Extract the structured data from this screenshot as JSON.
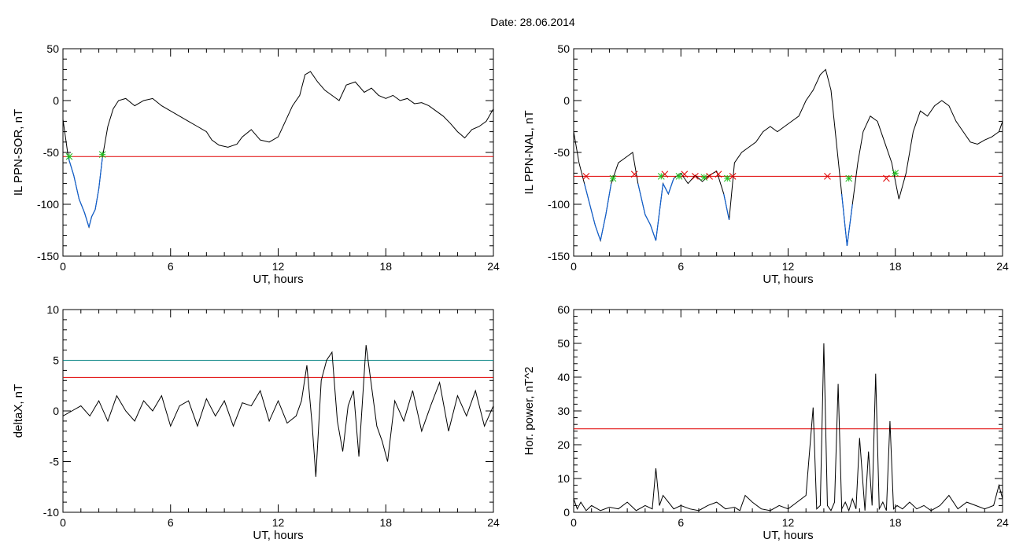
{
  "header": {
    "date_label": "Date:  28.06.2014"
  },
  "colors": {
    "data": "#000000",
    "threshold": "#e00000",
    "highlight": "#1060d0",
    "threshold2": "#008080",
    "marker_cross": "#e00000",
    "marker_star": "#20c020"
  },
  "chart_data": [
    {
      "type": "line",
      "xlabel": "UT, hours",
      "ylabel": "IL PPN-SOR, nT",
      "xlim": [
        0,
        24
      ],
      "ylim": [
        -150,
        50
      ],
      "xticks": [
        0,
        6,
        12,
        18,
        24
      ],
      "yticks": [
        -150,
        -100,
        -50,
        0,
        50
      ],
      "threshold": -54,
      "series": [
        {
          "x": [
            0,
            0.3,
            0.6,
            0.9,
            1.2,
            1.45,
            1.6,
            1.8,
            2.0,
            2.2,
            2.5,
            2.8,
            3.1,
            3.5,
            4.0,
            4.5,
            5.0,
            5.5,
            6.0,
            6.5,
            7.0,
            7.5,
            8.0,
            8.3,
            8.7,
            9.2,
            9.7,
            10.0,
            10.5,
            11.0,
            11.5,
            12.0,
            12.4,
            12.8,
            13.2,
            13.5,
            13.8,
            14.2,
            14.6,
            15.0,
            15.4,
            15.8,
            16.3,
            16.8,
            17.2,
            17.6,
            18.0,
            18.4,
            18.8,
            19.2,
            19.6,
            20.0,
            20.4,
            20.8,
            21.2,
            21.6,
            22.0,
            22.4,
            22.8,
            23.2,
            23.6,
            24.0
          ],
          "y": [
            -18,
            -55,
            -72,
            -95,
            -108,
            -122,
            -112,
            -105,
            -85,
            -55,
            -25,
            -8,
            0,
            2,
            -5,
            0,
            2,
            -5,
            -10,
            -15,
            -20,
            -25,
            -30,
            -38,
            -43,
            -45,
            -42,
            -35,
            -28,
            -38,
            -40,
            -35,
            -20,
            -5,
            5,
            25,
            28,
            18,
            10,
            5,
            0,
            15,
            18,
            8,
            12,
            5,
            2,
            5,
            0,
            2,
            -3,
            -2,
            -5,
            -10,
            -15,
            -22,
            -30,
            -36,
            -28,
            -25,
            -20,
            -8
          ]
        }
      ],
      "markers": [
        {
          "x": 0.35,
          "y": -54,
          "kind": "star"
        },
        {
          "x": 2.2,
          "y": -52,
          "kind": "star"
        }
      ]
    },
    {
      "type": "line",
      "xlabel": "UT, hours",
      "ylabel": "IL PPN-NAL, nT",
      "xlim": [
        0,
        24
      ],
      "ylim": [
        -150,
        50
      ],
      "xticks": [
        0,
        6,
        12,
        18,
        24
      ],
      "yticks": [
        -150,
        -100,
        -50,
        0,
        50
      ],
      "threshold": -73,
      "series": [
        {
          "x": [
            0,
            0.3,
            0.6,
            0.9,
            1.2,
            1.5,
            1.8,
            2.1,
            2.5,
            2.9,
            3.3,
            3.6,
            4.0,
            4.3,
            4.6,
            5.0,
            5.3,
            5.6,
            6.0,
            6.4,
            6.8,
            7.2,
            7.6,
            8.0,
            8.4,
            8.7,
            9.0,
            9.4,
            9.8,
            10.2,
            10.6,
            11.0,
            11.4,
            11.8,
            12.2,
            12.6,
            13.0,
            13.4,
            13.8,
            14.1,
            14.4,
            14.7,
            15.0,
            15.3,
            15.6,
            15.9,
            16.2,
            16.6,
            17.0,
            17.4,
            17.8,
            18.2,
            18.6,
            19.0,
            19.4,
            19.8,
            20.2,
            20.6,
            21.0,
            21.4,
            21.8,
            22.2,
            22.6,
            23.0,
            23.4,
            23.8,
            24.0
          ],
          "y": [
            -30,
            -60,
            -80,
            -100,
            -120,
            -135,
            -110,
            -80,
            -60,
            -55,
            -50,
            -80,
            -110,
            -120,
            -135,
            -80,
            -90,
            -75,
            -70,
            -80,
            -72,
            -78,
            -72,
            -68,
            -90,
            -115,
            -60,
            -50,
            -45,
            -40,
            -30,
            -25,
            -30,
            -25,
            -20,
            -15,
            0,
            10,
            25,
            30,
            10,
            -40,
            -90,
            -140,
            -100,
            -60,
            -30,
            -15,
            -20,
            -40,
            -60,
            -95,
            -70,
            -30,
            -10,
            -15,
            -5,
            0,
            -5,
            -20,
            -30,
            -40,
            -42,
            -38,
            -35,
            -30,
            -20
          ]
        }
      ],
      "markers": [
        {
          "x": 0.7,
          "y": -73,
          "kind": "cross"
        },
        {
          "x": 2.2,
          "y": -75,
          "kind": "star"
        },
        {
          "x": 3.4,
          "y": -71,
          "kind": "cross"
        },
        {
          "x": 4.9,
          "y": -73,
          "kind": "star"
        },
        {
          "x": 5.1,
          "y": -71,
          "kind": "cross"
        },
        {
          "x": 5.9,
          "y": -73,
          "kind": "star"
        },
        {
          "x": 6.2,
          "y": -71,
          "kind": "cross"
        },
        {
          "x": 6.8,
          "y": -73,
          "kind": "cross"
        },
        {
          "x": 7.3,
          "y": -74,
          "kind": "star"
        },
        {
          "x": 7.6,
          "y": -73,
          "kind": "cross"
        },
        {
          "x": 8.1,
          "y": -71,
          "kind": "cross"
        },
        {
          "x": 8.6,
          "y": -75,
          "kind": "star"
        },
        {
          "x": 8.9,
          "y": -73,
          "kind": "cross"
        },
        {
          "x": 14.2,
          "y": -73,
          "kind": "cross"
        },
        {
          "x": 15.4,
          "y": -75,
          "kind": "star"
        },
        {
          "x": 17.5,
          "y": -75,
          "kind": "cross"
        },
        {
          "x": 18.0,
          "y": -70,
          "kind": "star"
        }
      ]
    },
    {
      "type": "line",
      "xlabel": "UT, hours",
      "ylabel": "deltaX, nT",
      "xlim": [
        0,
        24
      ],
      "ylim": [
        -10,
        10
      ],
      "xticks": [
        0,
        6,
        12,
        18,
        24
      ],
      "yticks": [
        -10,
        -5,
        0,
        5,
        10
      ],
      "threshold": 3.3,
      "threshold2": 5,
      "series": [
        {
          "x": [
            0,
            0.5,
            1.0,
            1.5,
            2.0,
            2.5,
            3.0,
            3.5,
            4.0,
            4.5,
            5.0,
            5.5,
            6.0,
            6.5,
            7.0,
            7.5,
            8.0,
            8.5,
            9.0,
            9.5,
            10.0,
            10.5,
            11.0,
            11.5,
            12.0,
            12.5,
            13.0,
            13.3,
            13.6,
            13.9,
            14.1,
            14.4,
            14.7,
            15.0,
            15.3,
            15.6,
            15.9,
            16.2,
            16.5,
            16.9,
            17.2,
            17.5,
            17.8,
            18.1,
            18.5,
            19.0,
            19.5,
            20.0,
            20.5,
            21.0,
            21.5,
            22.0,
            22.5,
            23.0,
            23.5,
            24.0
          ],
          "y": [
            -0.5,
            0,
            0.5,
            -0.5,
            1.0,
            -1.0,
            1.5,
            0,
            -1.0,
            1.0,
            0,
            1.5,
            -1.5,
            0.5,
            1.0,
            -1.5,
            1.2,
            -0.5,
            1.0,
            -1.5,
            0.8,
            0.5,
            2.0,
            -1.0,
            1.0,
            -1.2,
            -0.5,
            1.0,
            4.5,
            -1.5,
            -6.5,
            3.0,
            5.0,
            5.8,
            -1.0,
            -4.0,
            0.5,
            2.0,
            -4.5,
            6.5,
            2.5,
            -1.5,
            -3.0,
            -5.0,
            1.0,
            -1.0,
            2.0,
            -2.0,
            0.5,
            2.8,
            -2.0,
            1.5,
            -0.5,
            2.0,
            -1.5,
            0.5
          ]
        }
      ]
    },
    {
      "type": "line",
      "xlabel": "UT, hours",
      "ylabel": "Hor. power, nT^2",
      "xlim": [
        0,
        24
      ],
      "ylim": [
        0,
        60
      ],
      "xticks": [
        0,
        6,
        12,
        18,
        24
      ],
      "yticks": [
        0,
        10,
        20,
        30,
        40,
        50,
        60
      ],
      "threshold": 24.7,
      "series": [
        {
          "x": [
            0,
            0.2,
            0.4,
            0.7,
            1.0,
            1.5,
            2.0,
            2.5,
            3.0,
            3.5,
            4.0,
            4.4,
            4.6,
            4.8,
            5.0,
            5.3,
            5.6,
            6.0,
            6.5,
            7.0,
            7.5,
            8.0,
            8.5,
            9.0,
            9.3,
            9.6,
            10.0,
            10.5,
            11.0,
            11.5,
            12.0,
            12.5,
            13.0,
            13.4,
            13.6,
            13.8,
            14.0,
            14.2,
            14.4,
            14.6,
            14.8,
            15.0,
            15.2,
            15.4,
            15.6,
            15.8,
            16.0,
            16.3,
            16.5,
            16.7,
            16.9,
            17.1,
            17.3,
            17.5,
            17.7,
            17.9,
            18.1,
            18.4,
            18.8,
            19.2,
            19.6,
            20.0,
            20.5,
            21.0,
            21.5,
            22.0,
            22.5,
            23.0,
            23.5,
            23.8,
            24.0
          ],
          "y": [
            4,
            1,
            3,
            0.5,
            2,
            0.5,
            1.5,
            1,
            3,
            0.5,
            2,
            1,
            13,
            2,
            5,
            3,
            1,
            2,
            1,
            0.5,
            2,
            3,
            1,
            1.5,
            0.5,
            5,
            3,
            1,
            0.5,
            2,
            1,
            3,
            5,
            31,
            1,
            2,
            50,
            2,
            0.5,
            3,
            38,
            1,
            3,
            0.5,
            4,
            1,
            22,
            0.5,
            18,
            2,
            41,
            1,
            3,
            0.5,
            27,
            1,
            2,
            1,
            3,
            1,
            2,
            0.5,
            2,
            5,
            1,
            3,
            2,
            1,
            2,
            8,
            4
          ]
        }
      ]
    }
  ]
}
